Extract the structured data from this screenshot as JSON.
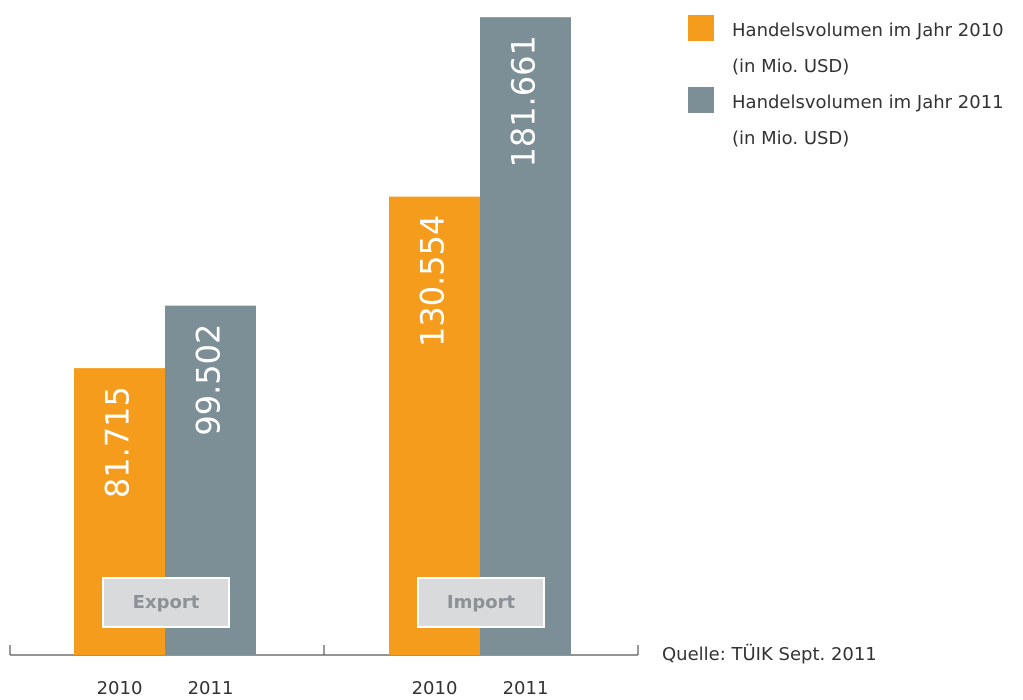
{
  "chart_data": {
    "type": "bar",
    "categories": [
      "Export",
      "Import"
    ],
    "bar_labels": [
      [
        "2010",
        "2011"
      ],
      [
        "2010",
        "2011"
      ]
    ],
    "series": [
      {
        "name": "Handelsvolumen im Jahr 2010 (in Mio. USD)",
        "color": "#f59c1c",
        "values": [
          81715,
          130554
        ],
        "value_labels": [
          "81.715",
          "130.554"
        ]
      },
      {
        "name": "Handelsvolumen im Jahr 2011 (in Mio. USD)",
        "color": "#7c8e96",
        "values": [
          99502,
          181661
        ],
        "value_labels": [
          "99.502",
          "181.661"
        ]
      }
    ],
    "ylim": [
      0,
      182000
    ],
    "legend": "top-right",
    "source": "Quelle: TÜIK Sept. 2011"
  }
}
